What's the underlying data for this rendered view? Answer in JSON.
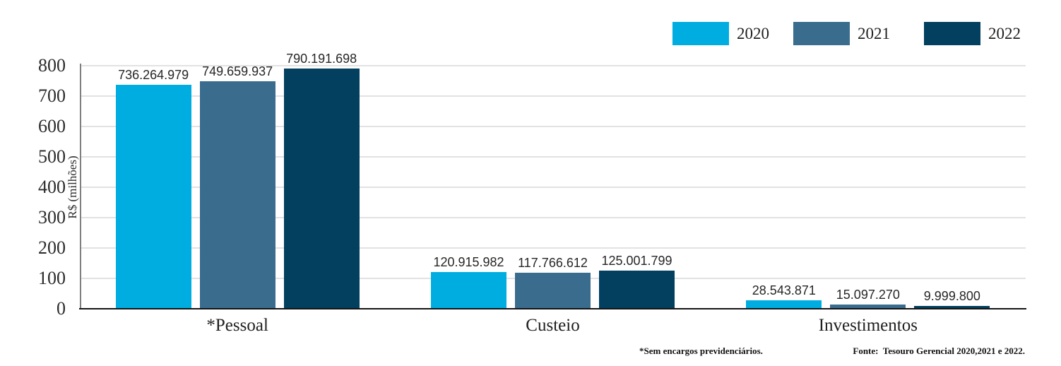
{
  "chart_data": {
    "type": "bar",
    "title": "",
    "ylabel": "R$ (milhões)",
    "ylim": [
      0,
      800
    ],
    "ytick_step": 100,
    "yticks": [
      0,
      100,
      200,
      300,
      400,
      500,
      600,
      700,
      800
    ],
    "value_unit": "R$, plotted as millions",
    "grid": true,
    "legend_position": "top-right",
    "categories": [
      "*Pessoal",
      "Custeio",
      "Investimentos"
    ],
    "series": [
      {
        "name": "2020",
        "color": "#00ADE0",
        "values": [
          736264979,
          120915982,
          28543871
        ],
        "value_labels": [
          "736.264.979",
          "120.915.982",
          "28.543.871"
        ]
      },
      {
        "name": "2021",
        "color": "#3A6C8E",
        "values": [
          749659937,
          117766612,
          15097270
        ],
        "value_labels": [
          "749.659.937",
          "117.766.612",
          "15.097.270"
        ]
      },
      {
        "name": "2022",
        "color": "#03405F",
        "values": [
          790191698,
          125001799,
          9999800
        ],
        "value_labels": [
          "790.191.698",
          "125.001.799",
          "9.999.800"
        ]
      }
    ]
  },
  "footnotes": {
    "note": "*Sem encargos previdenciários.",
    "source": "Fonte:  Tesouro Gerencial 2020,2021 e 2022."
  }
}
